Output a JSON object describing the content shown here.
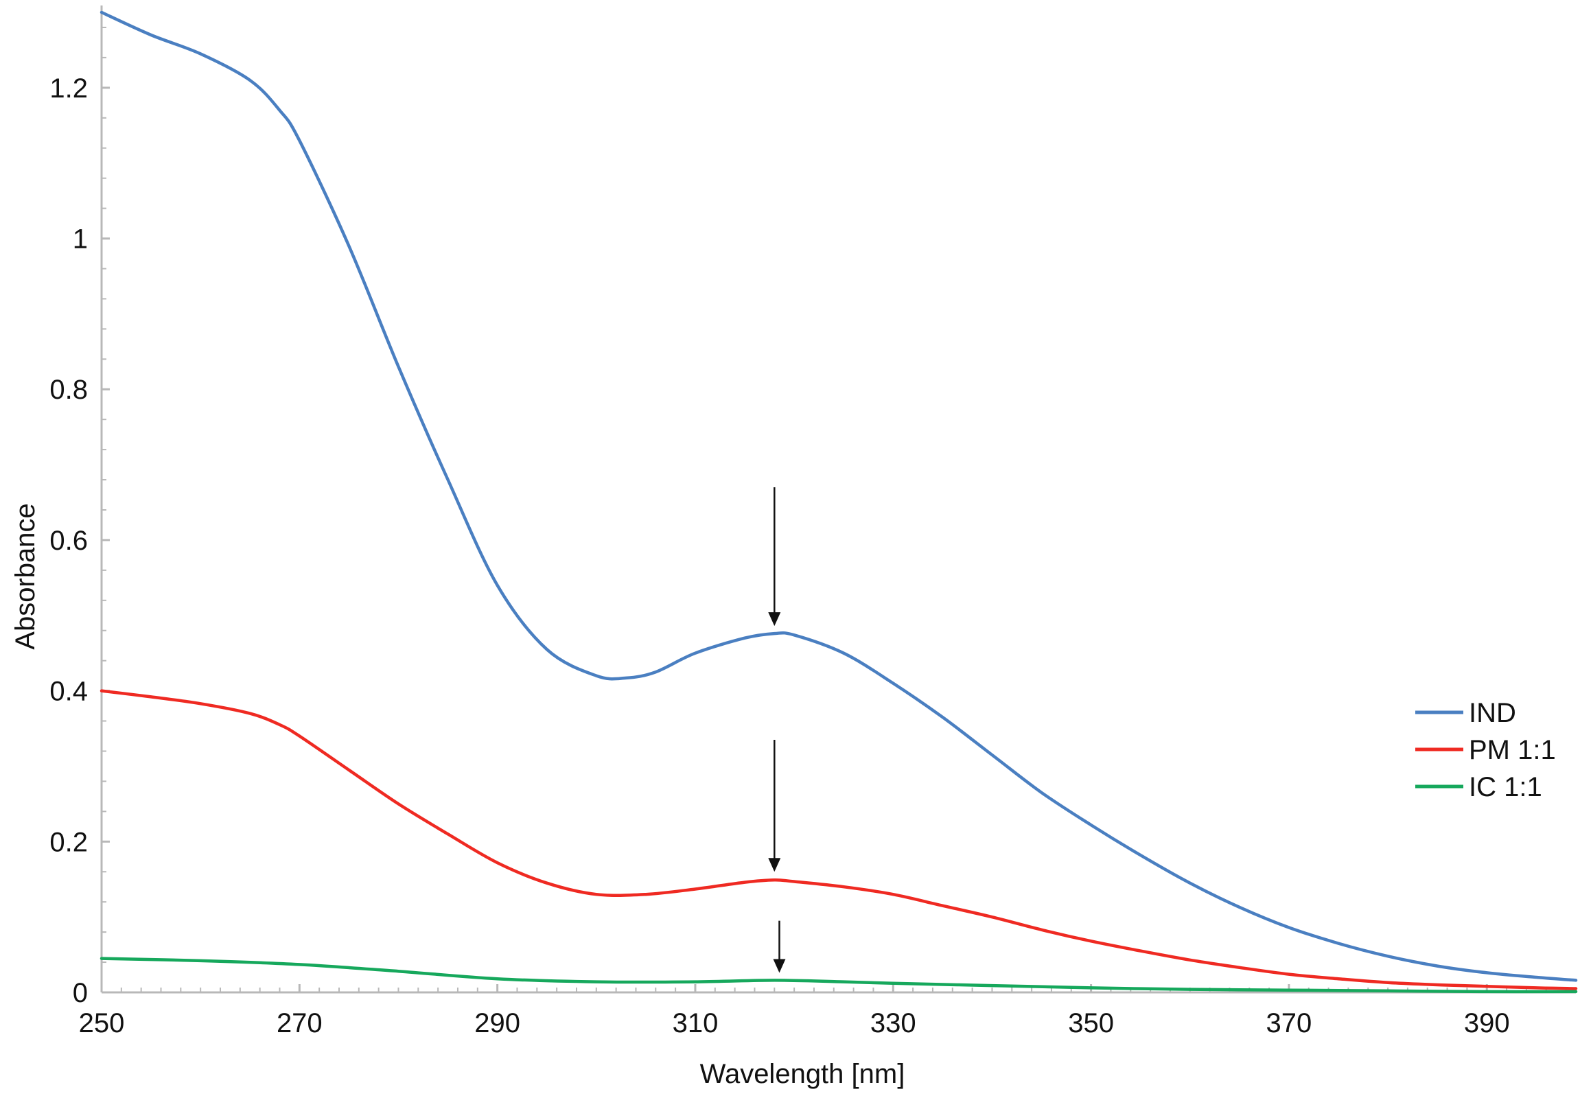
{
  "chart_data": {
    "type": "line",
    "xlabel": "Wavelength [nm]",
    "ylabel": "Absorbance",
    "xlim": [
      250,
      399
    ],
    "ylim": [
      0,
      1.3
    ],
    "xticks": [
      250,
      270,
      290,
      310,
      330,
      350,
      370,
      390
    ],
    "xtick_labels": [
      "250",
      "270",
      "290",
      "310",
      "330",
      "350",
      "370",
      "390"
    ],
    "yticks": [
      0,
      0.2,
      0.4,
      0.6,
      0.8,
      1,
      1.2
    ],
    "ytick_labels": [
      "0",
      "0.2",
      "0.4",
      "0.6",
      "0.8",
      "1",
      "1.2"
    ],
    "grid": false,
    "legend_position": "right",
    "series": [
      {
        "name": "IND",
        "color": "#4a7fc1",
        "x": [
          250,
          255,
          260,
          265,
          268,
          270,
          275,
          280,
          285,
          290,
          295,
          300,
          303,
          306,
          310,
          315,
          318,
          320,
          325,
          330,
          335,
          340,
          345,
          350,
          355,
          360,
          365,
          370,
          375,
          380,
          385,
          390,
          395,
          399
        ],
        "y": [
          1.3,
          1.27,
          1.245,
          1.21,
          1.17,
          1.13,
          0.99,
          0.83,
          0.68,
          0.54,
          0.455,
          0.42,
          0.417,
          0.425,
          0.45,
          0.47,
          0.476,
          0.474,
          0.45,
          0.41,
          0.365,
          0.315,
          0.265,
          0.222,
          0.182,
          0.145,
          0.113,
          0.086,
          0.065,
          0.048,
          0.035,
          0.026,
          0.02,
          0.016
        ]
      },
      {
        "name": "PM 1:1",
        "color": "#ef2a22",
        "x": [
          250,
          255,
          260,
          265,
          268,
          270,
          275,
          280,
          285,
          290,
          295,
          300,
          305,
          310,
          315,
          318,
          320,
          325,
          330,
          335,
          340,
          345,
          350,
          355,
          360,
          365,
          370,
          375,
          380,
          385,
          390,
          395,
          399
        ],
        "y": [
          0.4,
          0.392,
          0.383,
          0.37,
          0.355,
          0.34,
          0.295,
          0.25,
          0.21,
          0.172,
          0.145,
          0.13,
          0.13,
          0.137,
          0.146,
          0.149,
          0.147,
          0.14,
          0.13,
          0.115,
          0.1,
          0.083,
          0.068,
          0.055,
          0.043,
          0.033,
          0.024,
          0.018,
          0.013,
          0.01,
          0.008,
          0.006,
          0.005
        ]
      },
      {
        "name": "IC 1:1",
        "color": "#16a85c",
        "x": [
          250,
          260,
          270,
          280,
          290,
          300,
          310,
          318,
          325,
          330,
          340,
          350,
          360,
          370,
          380,
          390,
          399
        ],
        "y": [
          0.045,
          0.042,
          0.037,
          0.028,
          0.018,
          0.014,
          0.014,
          0.016,
          0.014,
          0.012,
          0.009,
          0.006,
          0.004,
          0.003,
          0.002,
          0.001,
          0.001
        ]
      }
    ],
    "annotations": [
      {
        "type": "arrow",
        "x": 318,
        "y_from": 0.67,
        "y_to": 0.486
      },
      {
        "type": "arrow",
        "x": 318,
        "y_from": 0.335,
        "y_to": 0.16
      },
      {
        "type": "arrow",
        "x": 318.5,
        "y_from": 0.095,
        "y_to": 0.026
      }
    ]
  }
}
